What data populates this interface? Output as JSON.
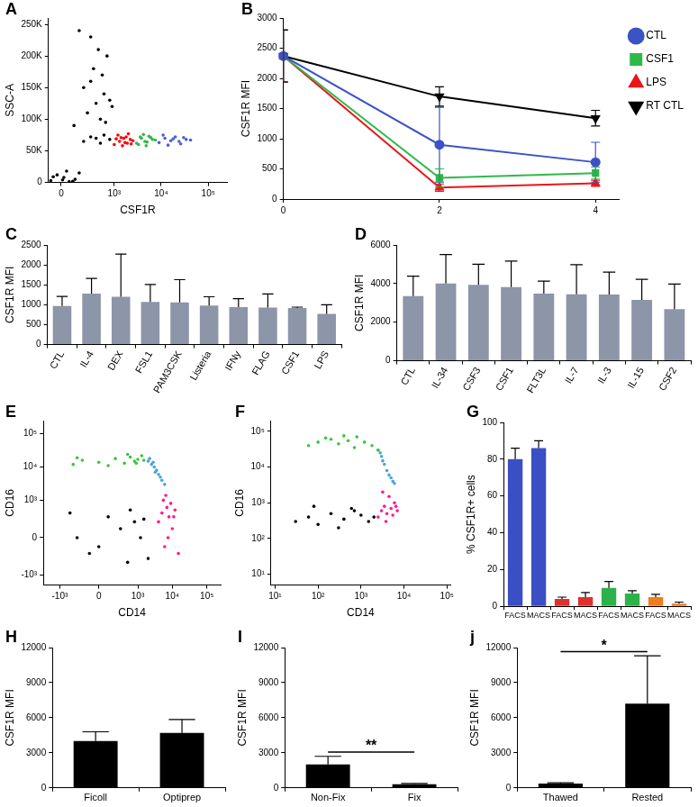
{
  "chart_data": [
    {
      "title": "A",
      "type": "scatter",
      "x_label": "CSF1R",
      "y_label": "SSC-A",
      "log": "x",
      "grid": false,
      "xlim": [
        -100,
        250000
      ],
      "xticks": [
        0,
        {
          "value": 1000,
          "label": "10³"
        },
        {
          "value": 10000,
          "label": "10⁴"
        },
        {
          "value": 100000,
          "label": "10⁵"
        }
      ],
      "ylim": [
        0,
        260000
      ],
      "yticks": [
        0,
        {
          "value": 50000,
          "label": "50K"
        },
        {
          "value": 100000,
          "label": "100K"
        },
        {
          "value": 150000,
          "label": "150K"
        },
        {
          "value": 200000,
          "label": "200K"
        },
        {
          "value": 250000,
          "label": "250K"
        }
      ],
      "series": [
        {
          "color": "#000000",
          "x": [
            -80,
            20,
            60,
            -30,
            110,
            150,
            -60,
            40,
            90,
            10,
            100,
            250,
            400,
            600,
            300,
            500,
            800,
            200,
            350,
            700,
            450,
            900,
            150,
            550,
            650,
            300,
            200,
            400,
            600,
            800,
            300,
            500
          ],
          "values": [
            3000,
            8000,
            1500,
            12000,
            5000,
            15000,
            9000,
            18000,
            2000,
            4000,
            90000,
            110000,
            125000,
            140000,
            160000,
            100000,
            130000,
            150000,
            180000,
            200000,
            210000,
            120000,
            240000,
            170000,
            95000,
            230000,
            65000,
            70000,
            75000,
            68000,
            72000,
            62000
          ]
        },
        {
          "color": "#ff0000",
          "x": [
            1000,
            1300,
            1600,
            1900,
            2200,
            1200,
            1500,
            1800,
            2500,
            1100,
            1700,
            2000,
            1400,
            2300
          ],
          "values": [
            60000,
            65000,
            70000,
            62000,
            68000,
            75000,
            58000,
            72000,
            66000,
            69000,
            63000,
            77000,
            71000,
            61000
          ]
        },
        {
          "color": "#2fb84a",
          "x": [
            3000,
            3800,
            4500,
            5500,
            6500,
            3300,
            4200,
            5000,
            6000,
            7500,
            3600,
            4800
          ],
          "values": [
            62000,
            70000,
            65000,
            73000,
            68000,
            60000,
            76000,
            64000,
            71000,
            67000,
            72000,
            58000
          ]
        },
        {
          "color": "#4a5fd0",
          "x": [
            9000,
            12000,
            16000,
            20000,
            26000,
            34000,
            11000,
            14000,
            18000,
            24000,
            42000,
            30000
          ],
          "values": [
            63000,
            70000,
            66000,
            72000,
            61000,
            68000,
            75000,
            59000,
            69000,
            65000,
            67000,
            71000
          ]
        }
      ]
    },
    {
      "title": "B",
      "type": "line",
      "y_label": "CSF1R MFI",
      "grid": false,
      "legend": "right",
      "x": [
        0,
        2,
        4
      ],
      "xlim": [
        0,
        4.3
      ],
      "xticks": [
        0,
        2,
        4
      ],
      "ylim": [
        0,
        3000
      ],
      "yticks": [
        0,
        500,
        1000,
        1500,
        2000,
        2500,
        3000
      ],
      "series": [
        {
          "name": "CTL",
          "color": "#3a53c5",
          "marker": "circle",
          "values": [
            2370,
            900,
            610
          ],
          "errors": [
            430,
            620,
            330
          ]
        },
        {
          "name": "CSF1",
          "color": "#2fb84a",
          "marker": "square",
          "values": [
            2370,
            350,
            430
          ],
          "errors": [
            430,
            150,
            100
          ]
        },
        {
          "name": "LPS",
          "color": "#e8161b",
          "marker": "triangle",
          "values": [
            2370,
            190,
            260
          ],
          "errors": [
            430,
            60,
            50
          ]
        },
        {
          "name": "RT CTL",
          "color": "#000000",
          "marker": "triangle-down",
          "values": [
            2370,
            1700,
            1340
          ],
          "errors": [
            430,
            160,
            130
          ]
        }
      ]
    },
    {
      "title": "C",
      "type": "bar",
      "y_label": "CSF1R MFI",
      "grid": false,
      "color": "#8d95a8",
      "categories": [
        "CTL",
        "IL-4",
        "DEX",
        "FSL1",
        "PAM3CSK",
        "Listeria",
        "IFNy",
        "FLAG",
        "CSF1",
        "LPS"
      ],
      "values": [
        970,
        1280,
        1200,
        1070,
        1060,
        980,
        940,
        930,
        920,
        770
      ],
      "errors": [
        240,
        380,
        1070,
        440,
        570,
        220,
        210,
        340,
        20,
        230
      ],
      "ylim": [
        0,
        2500
      ],
      "yticks": [
        0,
        500,
        1000,
        1500,
        2000,
        2500
      ]
    },
    {
      "title": "D",
      "type": "bar",
      "y_label": "CSF1R MFI",
      "grid": false,
      "color": "#8d95a8",
      "categories": [
        "CTL",
        "IL-34",
        "CSF3",
        "CSF1",
        "FLT3L",
        "IL-7",
        "IL-3",
        "IL-15",
        "CSF2"
      ],
      "values": [
        3350,
        4000,
        3930,
        3820,
        3480,
        3450,
        3430,
        3150,
        2680
      ],
      "errors": [
        1030,
        1500,
        1070,
        1350,
        650,
        1530,
        1160,
        1070,
        1300
      ],
      "ylim": [
        0,
        6000
      ],
      "yticks": [
        0,
        2000,
        4000,
        6000
      ]
    },
    {
      "title": "E",
      "type": "scatter",
      "x_label": "CD14",
      "y_label": "CD16",
      "log": true,
      "grid": false,
      "xlim": [
        -3000,
        250000
      ],
      "xticks": [
        {
          "value": -1000,
          "label": "-10³"
        },
        0,
        {
          "value": 1000,
          "label": "10³"
        },
        {
          "value": 10000,
          "label": "10⁴"
        },
        {
          "value": 100000,
          "label": "10⁵"
        }
      ],
      "ylim": [
        -2000,
        250000
      ],
      "yticks": [
        {
          "value": -1000,
          "label": "-10³"
        },
        0,
        {
          "value": 1000,
          "label": "10³"
        },
        {
          "value": 10000,
          "label": "10⁴"
        },
        {
          "value": 100000,
          "label": "10⁵"
        }
      ],
      "series": [
        {
          "color": "#3cc43c",
          "x": [
            -400,
            -200,
            0,
            200,
            400,
            600,
            800,
            1000,
            1300,
            -300,
            100,
            500,
            900,
            1500
          ],
          "values": [
            12000,
            16000,
            14000,
            18000,
            13000,
            20000,
            15000,
            17000,
            22000,
            19000,
            11000,
            24000,
            13000,
            16000
          ]
        },
        {
          "color": "#4aa3df",
          "x": [
            2000,
            2500,
            3000,
            3500,
            4000,
            5000,
            6000,
            2200,
            3200,
            4500,
            2800
          ],
          "values": [
            15000,
            12000,
            10000,
            8000,
            6000,
            4000,
            3000,
            18000,
            7000,
            5000,
            14000
          ]
        },
        {
          "color": "#ff1a8c",
          "x": [
            4000,
            5000,
            6000,
            7000,
            8000,
            9000,
            10000,
            12000,
            15000,
            5500,
            7500,
            11000,
            6500
          ],
          "values": [
            200,
            400,
            -100,
            600,
            300,
            800,
            100,
            500,
            -200,
            1000,
            0,
            300,
            1400
          ]
        },
        {
          "color": "#000000",
          "x": [
            -300,
            -100,
            100,
            300,
            500,
            800,
            1200,
            -500,
            0,
            600,
            1500,
            2000
          ],
          "values": [
            0,
            -200,
            300,
            100,
            -400,
            200,
            0,
            400,
            -100,
            500,
            250,
            -300
          ]
        }
      ]
    },
    {
      "title": "F",
      "type": "scatter",
      "x_label": "CD14",
      "y_label": "CD16",
      "log": true,
      "grid": false,
      "xlim": [
        8,
        120000
      ],
      "xticks": [
        {
          "value": 10,
          "label": "10¹"
        },
        {
          "value": 100,
          "label": "10²"
        },
        {
          "value": 1000,
          "label": "10³"
        },
        {
          "value": 10000,
          "label": "10⁴"
        },
        {
          "value": 100000,
          "label": "10⁵"
        }
      ],
      "ylim": [
        5,
        200000
      ],
      "yticks": [
        {
          "value": 10,
          "label": "10¹"
        },
        {
          "value": 100,
          "label": "10²"
        },
        {
          "value": 1000,
          "label": "10³"
        },
        {
          "value": 10000,
          "label": "10⁴"
        },
        {
          "value": 100000,
          "label": "10⁵"
        }
      ],
      "series": [
        {
          "color": "#3cc43c",
          "x": [
            60,
            100,
            200,
            300,
            500,
            800,
            1200,
            1800,
            150,
            400,
            700,
            2500
          ],
          "values": [
            40000,
            50000,
            60000,
            45000,
            55000,
            70000,
            50000,
            40000,
            65000,
            75000,
            35000,
            30000
          ]
        },
        {
          "color": "#4aa3df",
          "x": [
            2500,
            3000,
            3500,
            4000,
            5000,
            6000,
            2800,
            4500,
            3200,
            5500
          ],
          "values": [
            30000,
            20000,
            12000,
            8000,
            5000,
            3500,
            25000,
            6000,
            15000,
            4000
          ]
        },
        {
          "color": "#ff1a8c",
          "x": [
            2500,
            3000,
            3500,
            4000,
            5000,
            6000,
            7000,
            4500,
            3800,
            5500,
            3200,
            6500
          ],
          "values": [
            400,
            600,
            800,
            500,
            700,
            1000,
            600,
            1500,
            300,
            450,
            2000,
            800
          ]
        },
        {
          "color": "#000000",
          "x": [
            30,
            60,
            100,
            200,
            400,
            700,
            1000,
            1500,
            2000,
            80,
            300,
            600
          ],
          "values": [
            300,
            400,
            250,
            500,
            350,
            600,
            450,
            300,
            400,
            800,
            200,
            700
          ]
        }
      ]
    },
    {
      "title": "G",
      "type": "bar",
      "y_label": "% CSF1R+ cells",
      "grid": false,
      "categories": [
        "FACS",
        "MACS",
        "FACS",
        "MACS",
        "FACS",
        "MACS",
        "FACS",
        "MACS"
      ],
      "values": [
        80,
        86,
        4,
        5,
        10,
        7,
        5,
        1.5
      ],
      "errors": [
        6,
        4,
        1,
        2.5,
        3.5,
        1.5,
        1.5,
        0.8
      ],
      "colors": [
        "#3a4fc4",
        "#3a4fc4",
        "#e0302b",
        "#e0302b",
        "#2db24a",
        "#2db24a",
        "#f07d1a",
        "#f07d1a"
      ],
      "ylim": [
        0,
        100
      ],
      "yticks": [
        0,
        20,
        40,
        60,
        80,
        100
      ]
    },
    {
      "title": "H",
      "type": "bar",
      "y_label": "CSF1R MFI",
      "grid": false,
      "color": "#000000",
      "categories": [
        "Ficoll",
        "Optiprep"
      ],
      "values": [
        4000,
        4700
      ],
      "errors": [
        800,
        1150
      ],
      "ylim": [
        0,
        12000
      ],
      "yticks": [
        0,
        3000,
        6000,
        9000,
        12000
      ]
    },
    {
      "title": "I",
      "type": "bar",
      "y_label": "CSF1R MFI",
      "grid": false,
      "color": "#000000",
      "categories": [
        "Non-Fix",
        "Fix"
      ],
      "values": [
        2000,
        320
      ],
      "errors": [
        700,
        60
      ],
      "annotation": "**",
      "ylim": [
        0,
        12000
      ],
      "yticks": [
        0,
        3000,
        6000,
        9000,
        12000
      ]
    },
    {
      "title": "j",
      "type": "bar",
      "y_label": "CSF1R MFI",
      "grid": false,
      "color": "#000000",
      "categories": [
        "Thawed",
        "Rested"
      ],
      "values": [
        370,
        7200
      ],
      "errors": [
        60,
        4100
      ],
      "annotation": "*",
      "ylim": [
        0,
        12000
      ],
      "yticks": [
        0,
        3000,
        6000,
        9000,
        12000
      ]
    }
  ]
}
